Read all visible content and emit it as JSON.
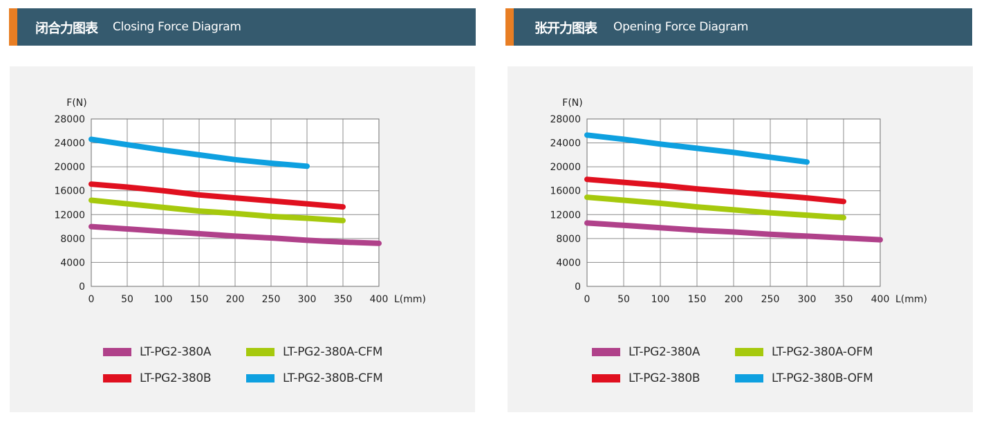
{
  "panels": [
    {
      "title_zh": "闭合力图表",
      "title_en": "Closing Force Diagram"
    },
    {
      "title_zh": "张开力图表",
      "title_en": "Opening Force Diagram"
    }
  ],
  "colors": {
    "header_bg": "#355a6e",
    "header_accent": "#e87e24",
    "chart_bg": "#f2f2f2",
    "grid": "#8c8c8c"
  },
  "chart_data": [
    {
      "type": "line",
      "title": "",
      "xlabel": "L(mm)",
      "ylabel": "F(N)",
      "xlim": [
        0,
        400
      ],
      "ylim": [
        0,
        28000
      ],
      "x_ticks": [
        0,
        50,
        100,
        150,
        200,
        250,
        300,
        350,
        400
      ],
      "y_ticks": [
        0,
        4000,
        8000,
        12000,
        16000,
        20000,
        24000,
        28000
      ],
      "grid": true,
      "legend_position": "bottom",
      "series": [
        {
          "name": "LT-PG2-380A",
          "color": "#b0418a",
          "x": [
            0,
            50,
            100,
            150,
            200,
            250,
            300,
            350,
            400
          ],
          "y": [
            10000,
            9600,
            9200,
            8800,
            8400,
            8100,
            7700,
            7400,
            7200
          ]
        },
        {
          "name": "LT-PG2-380B",
          "color": "#e0101f",
          "x": [
            0,
            50,
            100,
            150,
            200,
            250,
            300,
            350
          ],
          "y": [
            17100,
            16600,
            16000,
            15300,
            14800,
            14300,
            13800,
            13300
          ]
        },
        {
          "name": "LT-PG2-380A-CFM",
          "color": "#a6c90d",
          "x": [
            0,
            50,
            100,
            150,
            200,
            250,
            300,
            350
          ],
          "y": [
            14400,
            13800,
            13200,
            12600,
            12200,
            11700,
            11400,
            11000
          ]
        },
        {
          "name": "LT-PG2-380B-CFM",
          "color": "#0ea0e0",
          "x": [
            0,
            50,
            100,
            150,
            200,
            250,
            300
          ],
          "y": [
            24600,
            23700,
            22800,
            22000,
            21200,
            20600,
            20100
          ]
        }
      ]
    },
    {
      "type": "line",
      "title": "",
      "xlabel": "L(mm)",
      "ylabel": "F(N)",
      "xlim": [
        0,
        400
      ],
      "ylim": [
        0,
        28000
      ],
      "x_ticks": [
        0,
        50,
        100,
        150,
        200,
        250,
        300,
        350,
        400
      ],
      "y_ticks": [
        0,
        4000,
        8000,
        12000,
        16000,
        20000,
        24000,
        28000
      ],
      "grid": true,
      "legend_position": "bottom",
      "series": [
        {
          "name": "LT-PG2-380A",
          "color": "#b0418a",
          "x": [
            0,
            50,
            100,
            150,
            200,
            250,
            300,
            350,
            400
          ],
          "y": [
            10600,
            10200,
            9800,
            9400,
            9100,
            8700,
            8400,
            8100,
            7800
          ]
        },
        {
          "name": "LT-PG2-380B",
          "color": "#e0101f",
          "x": [
            0,
            50,
            100,
            150,
            200,
            250,
            300,
            350
          ],
          "y": [
            17900,
            17400,
            16900,
            16300,
            15800,
            15300,
            14800,
            14200
          ]
        },
        {
          "name": "LT-PG2-380A-OFM",
          "color": "#a6c90d",
          "x": [
            0,
            50,
            100,
            150,
            200,
            250,
            300,
            350
          ],
          "y": [
            14900,
            14400,
            13900,
            13300,
            12800,
            12300,
            11900,
            11500
          ]
        },
        {
          "name": "LT-PG2-380B-OFM",
          "color": "#0ea0e0",
          "x": [
            0,
            50,
            100,
            150,
            200,
            250,
            300
          ],
          "y": [
            25300,
            24600,
            23800,
            23100,
            22400,
            21600,
            20800
          ]
        }
      ]
    }
  ]
}
